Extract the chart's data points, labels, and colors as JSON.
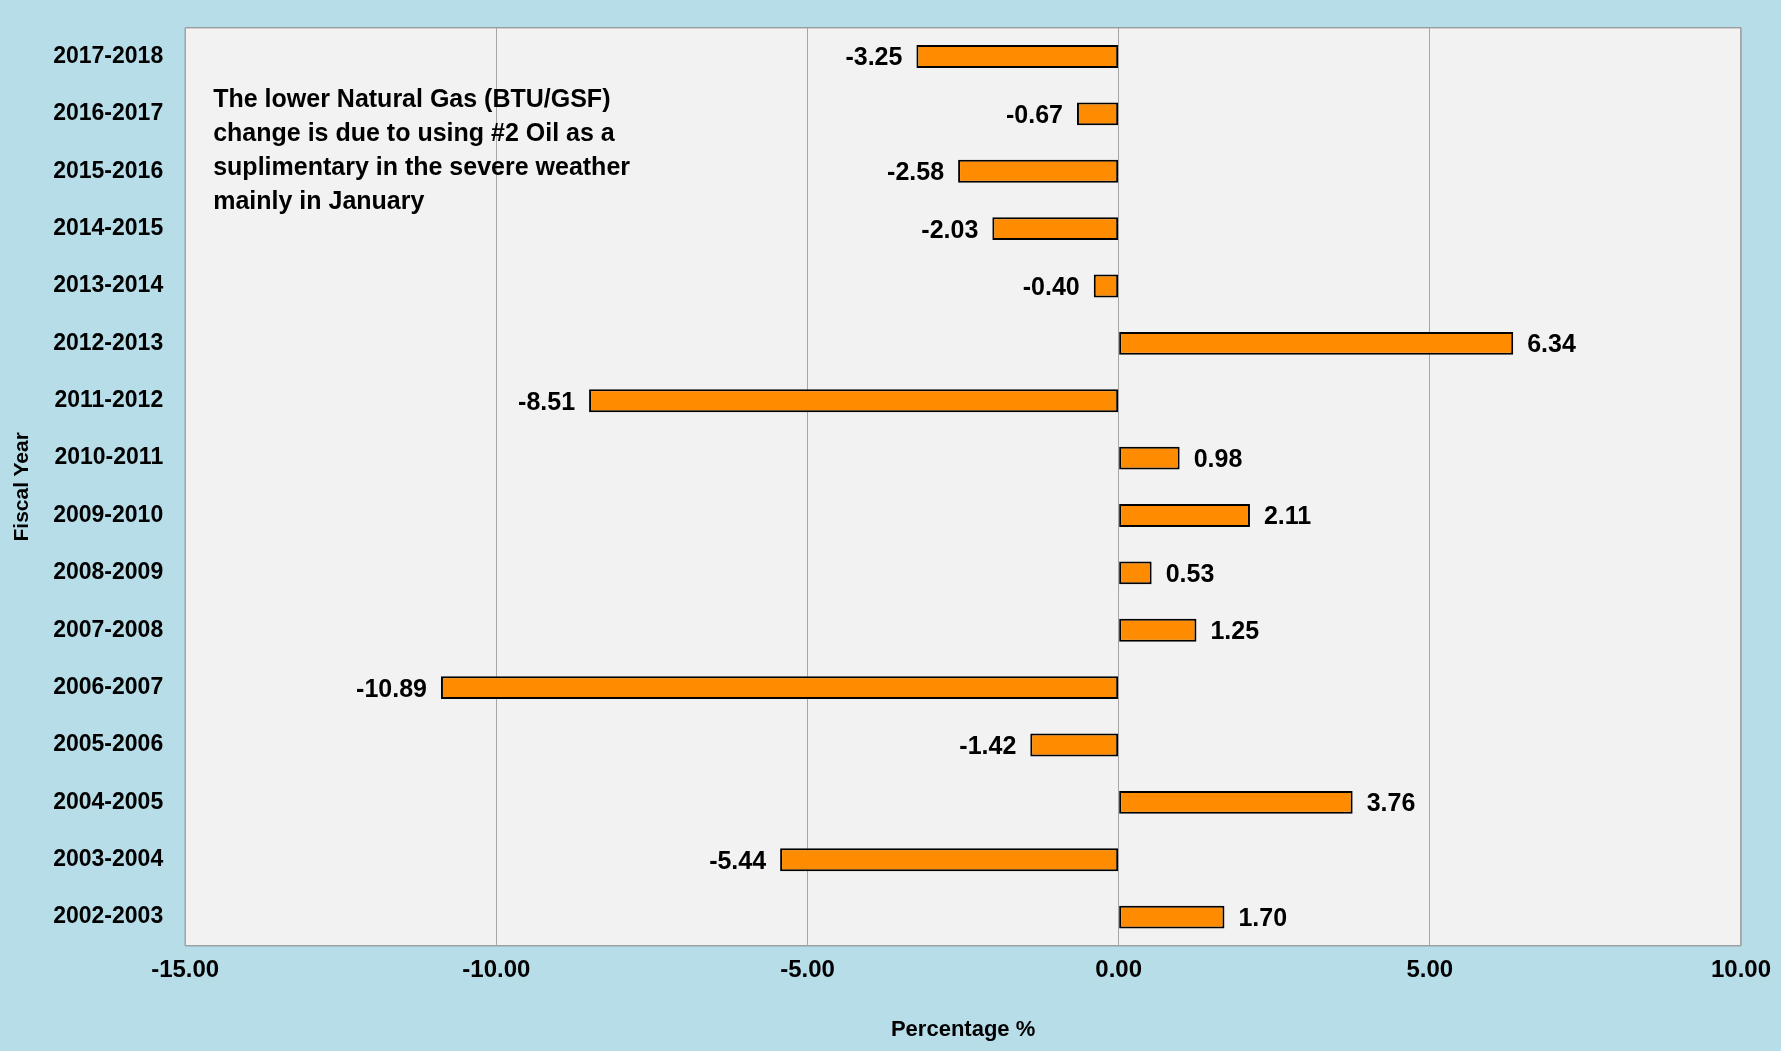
{
  "chart_data": {
    "type": "bar",
    "orientation": "horizontal",
    "xlabel": "Percentage %",
    "ylabel": "Fiscal Year",
    "categories": [
      "2017-2018",
      "2016-2017",
      "2015-2016",
      "2014-2015",
      "2013-2014",
      "2012-2013",
      "2011-2012",
      "2010-2011",
      "2009-2010",
      "2008-2009",
      "2007-2008",
      "2006-2007",
      "2005-2006",
      "2004-2005",
      "2003-2004",
      "2002-2003"
    ],
    "values": [
      -3.25,
      -0.67,
      -2.58,
      -2.03,
      -0.4,
      6.34,
      -8.51,
      0.98,
      2.11,
      0.53,
      1.25,
      -10.89,
      -1.42,
      3.76,
      -5.44,
      1.7
    ],
    "value_labels": [
      "-3.25",
      "-0.67",
      "-2.58",
      "-2.03",
      "-0.40",
      "6.34",
      "-8.51",
      "0.98",
      "2.11",
      "0.53",
      "1.25",
      "-10.89",
      "-1.42",
      "3.76",
      "-5.44",
      "1.70"
    ],
    "color": "#ff8c00",
    "xlim": [
      -15,
      10
    ],
    "xticks": [
      {
        "value": -15,
        "label": "-15.00"
      },
      {
        "value": -10,
        "label": "-10.00"
      },
      {
        "value": -5,
        "label": "-5.00"
      },
      {
        "value": 0,
        "label": "0.00"
      },
      {
        "value": 5,
        "label": "5.00"
      },
      {
        "value": 10,
        "label": "10.00"
      }
    ],
    "grid": "x",
    "annotations": [
      "The lower Natural Gas (BTU/GSF) change is due to using #2 Oil as a suplimentary in the severe weather mainly in January"
    ]
  }
}
